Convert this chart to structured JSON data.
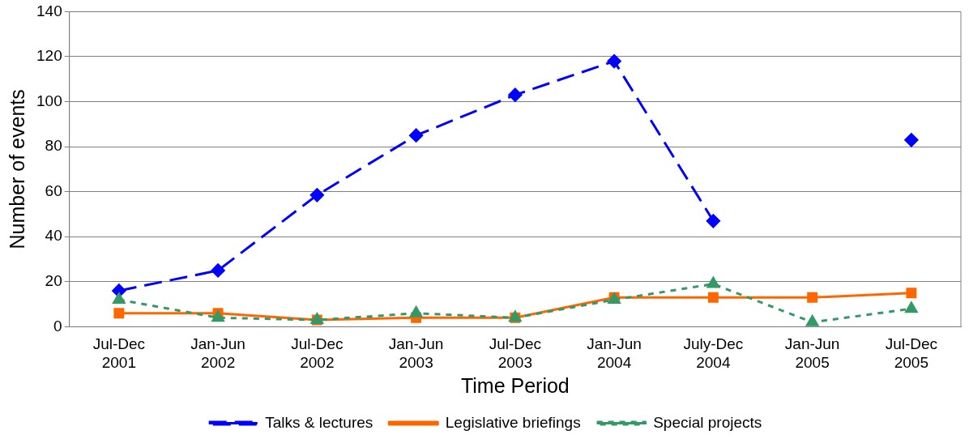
{
  "chart_data": {
    "type": "line",
    "xlabel": "Time Period",
    "ylabel": "Number of events",
    "categories": [
      "Jul-Dec 2001",
      "Jan-Jun 2002",
      "Jul-Dec 2002",
      "Jan-Jun 2003",
      "Jul-Dec 2003",
      "Jan-Jun 2004",
      "July-Dec 2004",
      "Jan-Jun 2005",
      "Jul-Dec 2005"
    ],
    "series": [
      {
        "name": "Talks & lectures",
        "color": "#0000ff",
        "marker": "diamond",
        "line_style": "dashed",
        "values": [
          16,
          25,
          58.5,
          85,
          103,
          118,
          47,
          null,
          83
        ]
      },
      {
        "name": "Legislative briefings",
        "color": "#ff6600",
        "marker": "square",
        "line_style": "solid",
        "values": [
          6,
          6,
          3,
          4,
          4,
          13,
          13,
          13,
          15
        ]
      },
      {
        "name": "Special projects",
        "color": "#339966",
        "marker": "triangle",
        "line_style": "dotted",
        "values": [
          12,
          4,
          3,
          6,
          4,
          12,
          19,
          2,
          8
        ]
      }
    ],
    "ylim": [
      0,
      140
    ],
    "yticks": [
      0,
      20,
      40,
      60,
      80,
      100,
      120,
      140
    ],
    "grid": "y",
    "legend": "bottom"
  }
}
